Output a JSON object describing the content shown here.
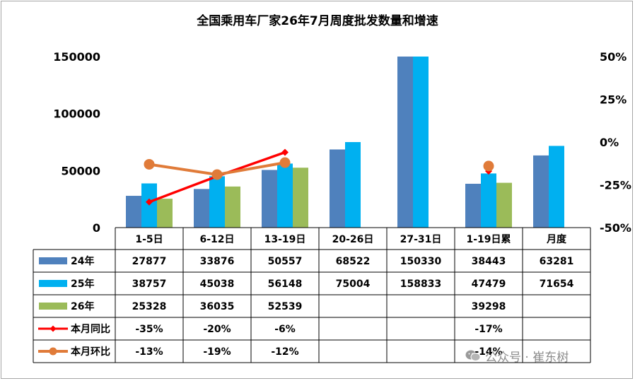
{
  "watermark": {
    "text": "公众号 · 崔东树",
    "icon": "wechat-icon"
  },
  "chart_data": {
    "type": "bar",
    "title": "全国乘用车厂家26年7月周度批发数量和增速",
    "categories": [
      "1-5日",
      "6-12日",
      "13-19日",
      "20-26日",
      "27-31日",
      "1-19日累",
      "月度"
    ],
    "y_left": {
      "ticks": [
        "0",
        "50000",
        "100000",
        "150000"
      ],
      "range": [
        0,
        150000
      ]
    },
    "y_right": {
      "ticks": [
        "-50%",
        "-25%",
        "0%",
        "25%",
        "50%"
      ],
      "range": [
        -0.5,
        0.5
      ]
    },
    "grid": false,
    "legend": "data-table",
    "series": [
      {
        "name": "24年",
        "kind": "bar",
        "color": "#4f81bd",
        "values": [
          27877,
          33876,
          50557,
          68522,
          150330,
          38443,
          63281
        ],
        "labels": [
          "27877",
          "33876",
          "50557",
          "68522",
          "150330",
          "38443",
          "63281"
        ]
      },
      {
        "name": "25年",
        "kind": "bar",
        "color": "#00b0f0",
        "values": [
          38757,
          45038,
          56148,
          75004,
          158833,
          47479,
          71654
        ],
        "labels": [
          "38757",
          "45038",
          "56148",
          "75004",
          "158833",
          "47479",
          "71654"
        ]
      },
      {
        "name": "26年",
        "kind": "bar",
        "color": "#9bbb59",
        "values": [
          25328,
          36035,
          52539,
          null,
          null,
          39298,
          null
        ],
        "labels": [
          "25328",
          "36035",
          "52539",
          "",
          "",
          "39298",
          ""
        ]
      },
      {
        "name": "本月同比",
        "kind": "line",
        "axis": "right",
        "color": "#ff0000",
        "marker": "diamond",
        "values": [
          -0.35,
          -0.2,
          -0.06,
          null,
          null,
          -0.17,
          null
        ],
        "labels": [
          "-35%",
          "-20%",
          "-6%",
          "",
          "",
          "-17%",
          ""
        ]
      },
      {
        "name": "本月环比",
        "kind": "line",
        "axis": "right",
        "color": "#e07b39",
        "marker": "circle",
        "values": [
          -0.13,
          -0.19,
          -0.12,
          null,
          null,
          -0.14,
          null
        ],
        "labels": [
          "-13%",
          "-19%",
          "-12%",
          "",
          "",
          "-14%",
          ""
        ]
      }
    ]
  }
}
